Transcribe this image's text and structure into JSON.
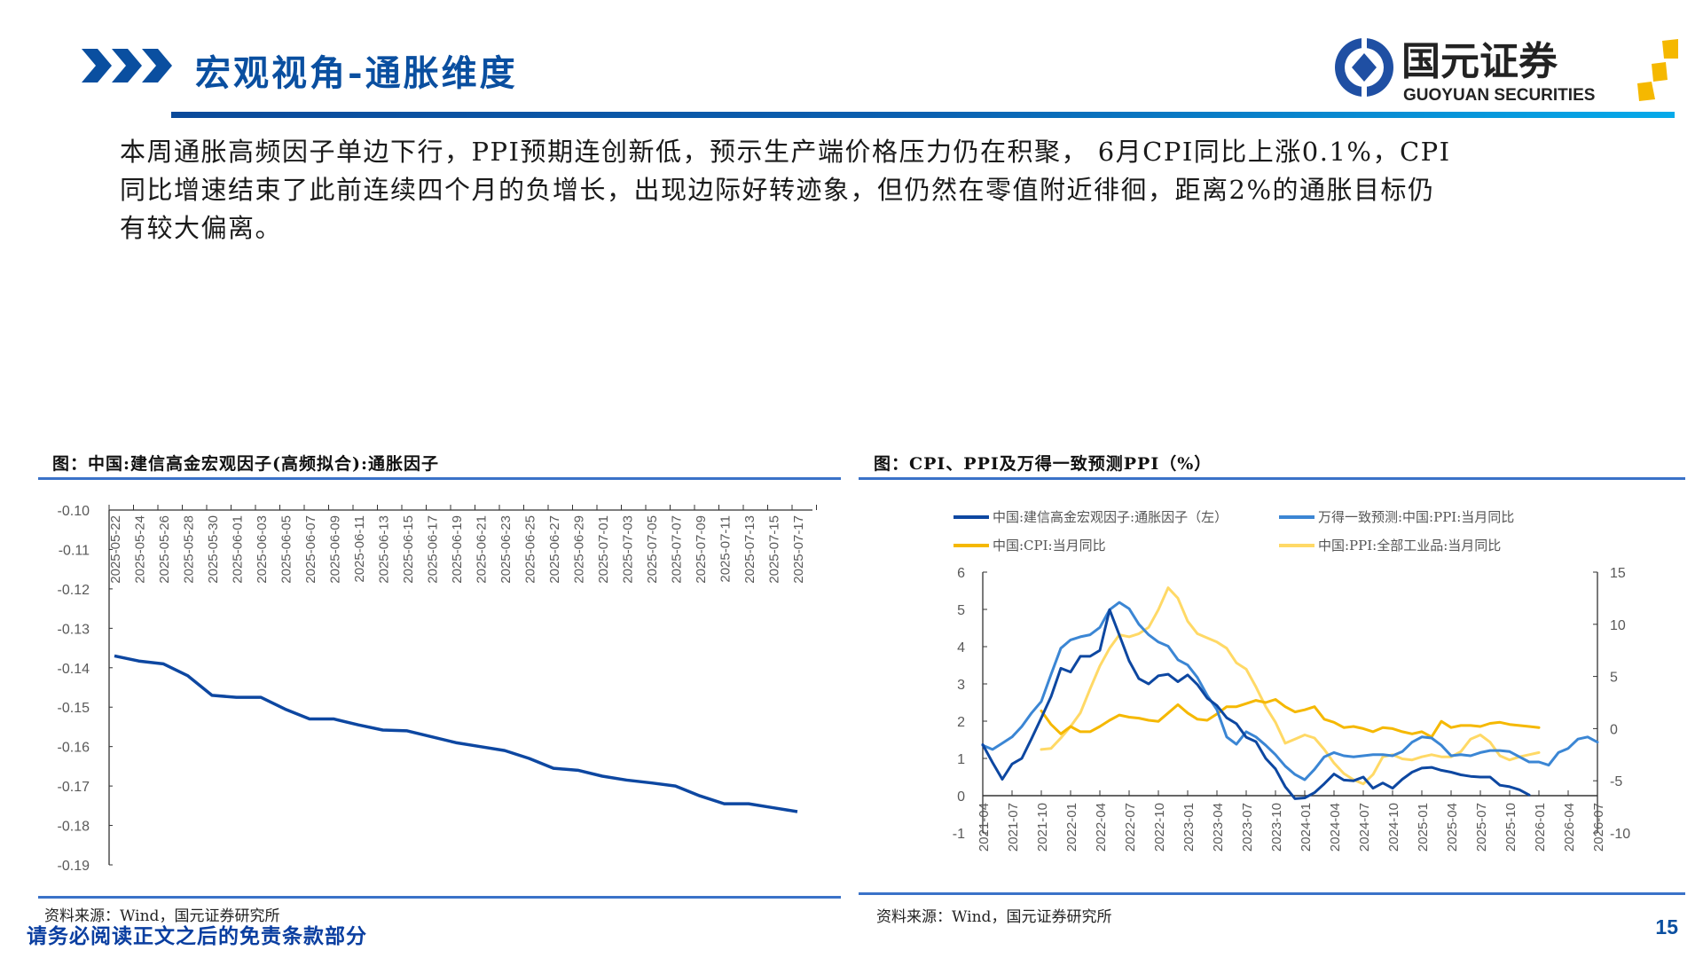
{
  "header": {
    "title": "宏观视角-通胀维度",
    "logo_cn": "国元证券",
    "logo_en": "GUOYUAN SECURITIES"
  },
  "body_lines": [
    "本周通胀高频因子单边下行，PPI预期连创新低，预示生产端价格压力仍在积聚， 6月CPI同比上涨0.1%，CPI",
    "同比增速结束了此前连续四个月的负增长，出现边际好转迹象，但仍然在零值附近徘徊，距离2%的通胀目标仍",
    "有较大偏离。"
  ],
  "footer": {
    "disclaimer": "请务必阅读正文之后的免责条款部分",
    "page_number": "15"
  },
  "colors": {
    "brand": "#0a4fa0",
    "dark_blue": "#0d47a1",
    "mid_blue": "#3b86d4",
    "orange": "#f5b800",
    "light_yellow": "#ffd966"
  },
  "chart_data": [
    {
      "type": "line",
      "title": "图：中国:建信高金宏观因子(高频拟合):通胀因子",
      "source": "资料来源：Wind，国元证券研究所",
      "xlabel": "",
      "ylabel": "",
      "ylim": [
        -0.19,
        -0.1
      ],
      "yticks": [
        "-0.10",
        "-0.11",
        "-0.12",
        "-0.13",
        "-0.14",
        "-0.15",
        "-0.16",
        "-0.17",
        "-0.18",
        "-0.19"
      ],
      "categories": [
        "2025-05-22",
        "2025-05-24",
        "2025-05-26",
        "2025-05-28",
        "2025-05-30",
        "2025-06-01",
        "2025-06-03",
        "2025-06-05",
        "2025-06-07",
        "2025-06-09",
        "2025-06-11",
        "2025-06-13",
        "2025-06-15",
        "2025-06-17",
        "2025-06-19",
        "2025-06-21",
        "2025-06-23",
        "2025-06-25",
        "2025-06-27",
        "2025-06-29",
        "2025-07-01",
        "2025-07-03",
        "2025-07-05",
        "2025-07-07",
        "2025-07-09",
        "2025-07-11",
        "2025-07-13",
        "2025-07-15",
        "2025-07-17"
      ],
      "series": [
        {
          "name": "中国:建信高金宏观因子(高频拟合):通胀因子",
          "color": "#0d47a1",
          "values": [
            -0.137,
            -0.1383,
            -0.139,
            -0.142,
            -0.147,
            -0.1475,
            -0.1475,
            -0.1505,
            -0.153,
            -0.153,
            -0.1545,
            -0.1558,
            -0.156,
            -0.1575,
            -0.159,
            -0.16,
            -0.161,
            -0.163,
            -0.1655,
            -0.166,
            -0.1675,
            -0.1685,
            -0.1692,
            -0.17,
            -0.1725,
            -0.1745,
            -0.1745,
            -0.1755,
            -0.1765
          ]
        }
      ]
    },
    {
      "type": "line",
      "title": "图：CPI、PPI及万得一致预测PPI（%）",
      "source": "资料来源：Wind，国元证券研究所",
      "x_start": "2021-04",
      "x_end": "2026-07",
      "xticks": [
        "2021-04",
        "2021-07",
        "2021-10",
        "2022-01",
        "2022-04",
        "2022-07",
        "2022-10",
        "2023-01",
        "2023-04",
        "2023-07",
        "2023-10",
        "2024-01",
        "2024-04",
        "2024-07",
        "2024-10",
        "2025-01",
        "2025-04",
        "2025-07",
        "2025-10",
        "2026-01",
        "2026-04",
        "2026-07"
      ],
      "ylim_left": [
        -1,
        6
      ],
      "yticks_left": [
        "6",
        "5",
        "4",
        "3",
        "2",
        "1",
        "0",
        "-1"
      ],
      "ylim_right": [
        -10,
        15
      ],
      "yticks_right": [
        "15",
        "10",
        "5",
        "0",
        "-5",
        "-10"
      ],
      "legend_position": "top",
      "series": [
        {
          "name": "中国:建信高金宏观因子:通胀因子（左）",
          "axis": "left",
          "color": "#0d47a1",
          "start": "2021-04",
          "values": [
            1.37,
            0.89,
            0.44,
            0.85,
            1.0,
            1.53,
            2.09,
            2.66,
            3.42,
            3.32,
            3.74,
            3.74,
            3.9,
            4.99,
            4.31,
            3.62,
            3.14,
            3.0,
            3.22,
            3.26,
            3.06,
            3.24,
            2.98,
            2.62,
            2.42,
            2.09,
            1.93,
            1.57,
            1.45,
            1.0,
            0.72,
            0.24,
            -0.08,
            -0.06,
            0.08,
            0.32,
            0.58,
            0.42,
            0.4,
            0.5,
            0.2,
            0.34,
            0.2,
            0.44,
            0.63,
            0.74,
            0.76,
            0.68,
            0.63,
            0.56,
            0.52,
            0.5,
            0.5,
            0.28,
            0.24,
            0.16,
            0.02
          ]
        },
        {
          "name": "万得一致预测:中国:PPI:当月同比",
          "axis": "right",
          "color": "#3b86d4",
          "start": "2021-04",
          "values": [
            -1.6,
            -2.0,
            -1.4,
            -0.8,
            0.2,
            1.5,
            2.6,
            5.2,
            7.7,
            8.5,
            8.8,
            9.0,
            9.7,
            11.4,
            12.1,
            11.5,
            10.0,
            9.0,
            8.3,
            7.9,
            6.6,
            6.1,
            4.9,
            3.2,
            1.8,
            -0.8,
            -1.5,
            -0.3,
            -0.8,
            -1.6,
            -2.5,
            -3.6,
            -4.4,
            -4.9,
            -3.9,
            -2.7,
            -2.3,
            -2.6,
            -2.7,
            -2.6,
            -2.5,
            -2.5,
            -2.6,
            -2.2,
            -1.3,
            -0.8,
            -0.9,
            -1.6,
            -2.6,
            -2.5,
            -2.6,
            -2.3,
            -2.1,
            -2.1,
            -2.2,
            -2.7,
            -3.2,
            -3.2,
            -3.5,
            -2.3,
            -1.9,
            -1.0,
            -0.8,
            -1.3
          ]
        },
        {
          "name": "中国:CPI:当月同比",
          "axis": "right",
          "color": "#f5b800",
          "start": "2021-10",
          "values": [
            1.7,
            0.4,
            -0.5,
            0.2,
            -0.3,
            -0.3,
            0.2,
            0.8,
            1.3,
            1.1,
            1.0,
            0.8,
            0.7,
            1.5,
            2.3,
            1.5,
            0.9,
            0.8,
            1.4,
            2.1,
            2.1,
            2.4,
            2.7,
            2.5,
            2.8,
            2.1,
            1.6,
            1.8,
            2.1,
            0.9,
            0.6,
            0.1,
            0.2,
            0.0,
            -0.3,
            0.1,
            0.0,
            -0.3,
            -0.5,
            -0.3,
            -0.8,
            0.7,
            0.1,
            0.3,
            0.3,
            0.2,
            0.5,
            0.6,
            0.4,
            0.3,
            0.2,
            0.1
          ]
        },
        {
          "name": "中国:PPI:全部工业品:当月同比",
          "axis": "right",
          "color": "#ffd966",
          "start": "2021-10",
          "values": [
            -2.0,
            -1.9,
            -0.9,
            0.2,
            1.5,
            3.8,
            6.0,
            7.7,
            9.0,
            8.8,
            9.1,
            9.7,
            11.4,
            13.5,
            12.5,
            10.3,
            9.1,
            8.7,
            8.3,
            7.7,
            6.3,
            5.7,
            4.0,
            2.1,
            0.6,
            -1.4,
            -1.0,
            -0.6,
            -0.9,
            -2.0,
            -3.3,
            -4.3,
            -4.9,
            -5.3,
            -4.4,
            -2.7,
            -2.5,
            -2.9,
            -3.0,
            -2.7,
            -2.5,
            -2.7,
            -2.7,
            -2.2,
            -1.0,
            -0.6,
            -1.3,
            -2.6,
            -3.0,
            -2.7,
            -2.5,
            -2.3
          ]
        }
      ]
    }
  ]
}
